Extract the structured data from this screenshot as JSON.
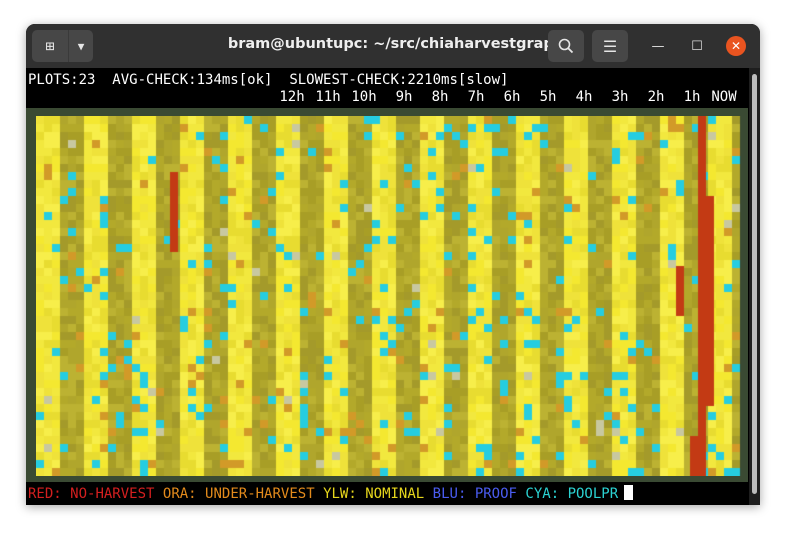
{
  "window": {
    "title": "bram@ubuntupc: ~/src/chiaharvestgraph"
  },
  "status": {
    "plots": "PLOTS:23",
    "avg_check": "AVG-CHECK:134ms[ok]",
    "slowest_check": "SLOWEST-CHECK:2210ms[slow]"
  },
  "time_labels": [
    "12h",
    "11h",
    "10h",
    "9h",
    "8h",
    "7h",
    "6h",
    "5h",
    "4h",
    "3h",
    "2h",
    "1h",
    "NOW"
  ],
  "legend": [
    {
      "color_label": "RED:",
      "text": "NO-HARVEST",
      "color": "#d31f1f"
    },
    {
      "color_label": "ORA:",
      "text": "UNDER-HARVEST",
      "color": "#e28a1c"
    },
    {
      "color_label": "YLW:",
      "text": "NOMINAL",
      "color": "#e6d61c"
    },
    {
      "color_label": "BLU:",
      "text": "PROOF",
      "color": "#4a5cf0"
    },
    {
      "color_label": "CYA:",
      "text": "POOLPR",
      "color": "#2bd2d2"
    }
  ],
  "colors": {
    "nominal_bright": "#f4e830",
    "nominal_dim": "#b3a92a",
    "under_harvest": "#d29a28",
    "no_harvest": "#c33a14",
    "poolpr": "#26cde0",
    "terminal_bg": "#000000",
    "plot_border": "#3a4a33"
  }
}
